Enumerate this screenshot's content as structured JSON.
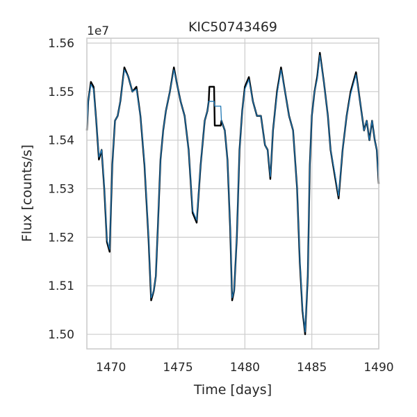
{
  "chart_data": {
    "type": "line",
    "title": "KIC50743469",
    "xlabel": "Time [days]",
    "ylabel": "Flux [counts/s]",
    "y_offset_label": "1e7",
    "xlim": [
      1468.2,
      1490.0
    ],
    "ylim": [
      14.97,
      15.61
    ],
    "xticks": [
      1470,
      1475,
      1480,
      1485,
      1490
    ],
    "yticks": [
      15.0,
      15.1,
      15.2,
      15.3,
      15.4,
      15.5,
      15.6
    ],
    "xtick_labels": [
      "1470",
      "1475",
      "1480",
      "1485",
      "1490"
    ],
    "ytick_labels": [
      "1.50",
      "1.51",
      "1.52",
      "1.53",
      "1.54",
      "1.55",
      "1.56"
    ],
    "grid": true,
    "series": [
      {
        "color": "#000000",
        "x": [
          1468.2,
          1468.3,
          1468.5,
          1468.7,
          1468.9,
          1469.1,
          1469.3,
          1469.5,
          1469.7,
          1469.9,
          1470.1,
          1470.3,
          1470.5,
          1470.7,
          1471.0,
          1471.3,
          1471.6,
          1471.9,
          1472.2,
          1472.5,
          1472.8,
          1473.0,
          1473.2,
          1473.35,
          1473.5,
          1473.7,
          1473.9,
          1474.1,
          1474.4,
          1474.7,
          1474.9,
          1475.2,
          1475.5,
          1475.8,
          1476.1,
          1476.4,
          1476.7,
          1477.0,
          1477.2,
          1477.3,
          1477.35,
          1477.7,
          1477.75,
          1478.2,
          1478.25,
          1478.5,
          1478.7,
          1478.9,
          1479.05,
          1479.2,
          1479.4,
          1479.6,
          1479.8,
          1480.0,
          1480.3,
          1480.6,
          1480.9,
          1481.2,
          1481.5,
          1481.7,
          1481.9,
          1482.1,
          1482.4,
          1482.7,
          1483.0,
          1483.3,
          1483.6,
          1483.9,
          1484.1,
          1484.3,
          1484.5,
          1484.7,
          1484.85,
          1485.0,
          1485.2,
          1485.4,
          1485.6,
          1485.9,
          1486.2,
          1486.4,
          1486.7,
          1487.0,
          1487.3,
          1487.6,
          1487.9,
          1488.1,
          1488.3,
          1488.6,
          1488.9,
          1489.1,
          1489.3,
          1489.5,
          1489.7,
          1489.85,
          1490.0
        ],
        "y": [
          15.42,
          15.48,
          15.52,
          15.51,
          15.44,
          15.36,
          15.38,
          15.3,
          15.19,
          15.17,
          15.35,
          15.44,
          15.45,
          15.48,
          15.55,
          15.53,
          15.5,
          15.51,
          15.45,
          15.35,
          15.2,
          15.07,
          15.09,
          15.12,
          15.22,
          15.36,
          15.42,
          15.46,
          15.5,
          15.55,
          15.52,
          15.48,
          15.45,
          15.38,
          15.25,
          15.23,
          15.35,
          15.44,
          15.46,
          15.48,
          15.51,
          15.51,
          15.43,
          15.43,
          15.44,
          15.42,
          15.36,
          15.22,
          15.07,
          15.09,
          15.2,
          15.38,
          15.46,
          15.51,
          15.53,
          15.48,
          15.45,
          15.45,
          15.39,
          15.38,
          15.32,
          15.42,
          15.5,
          15.55,
          15.5,
          15.45,
          15.42,
          15.3,
          15.15,
          15.05,
          15.0,
          15.12,
          15.35,
          15.45,
          15.5,
          15.53,
          15.58,
          15.52,
          15.45,
          15.38,
          15.33,
          15.28,
          15.38,
          15.45,
          15.5,
          15.52,
          15.54,
          15.48,
          15.42,
          15.44,
          15.4,
          15.44,
          15.4,
          15.38,
          15.31
        ]
      },
      {
        "color": "#1f77b4",
        "x": [
          1468.2,
          1468.3,
          1468.5,
          1468.7,
          1468.9,
          1469.1,
          1469.3,
          1469.5,
          1469.7,
          1469.9,
          1470.1,
          1470.3,
          1470.5,
          1470.7,
          1471.0,
          1471.3,
          1471.6,
          1471.9,
          1472.2,
          1472.5,
          1472.8,
          1473.0,
          1473.2,
          1473.35,
          1473.5,
          1473.7,
          1473.9,
          1474.1,
          1474.4,
          1474.7,
          1474.9,
          1475.2,
          1475.5,
          1475.8,
          1476.1,
          1476.4,
          1476.7,
          1477.0,
          1477.2,
          1477.3,
          1477.35,
          1477.7,
          1477.75,
          1478.2,
          1478.25,
          1478.5,
          1478.7,
          1478.9,
          1479.05,
          1479.2,
          1479.4,
          1479.6,
          1479.8,
          1480.0,
          1480.3,
          1480.6,
          1480.9,
          1481.2,
          1481.5,
          1481.7,
          1481.9,
          1482.1,
          1482.4,
          1482.7,
          1483.0,
          1483.3,
          1483.6,
          1483.9,
          1484.1,
          1484.3,
          1484.5,
          1484.7,
          1484.85,
          1485.0,
          1485.2,
          1485.4,
          1485.6,
          1485.9,
          1486.2,
          1486.4,
          1486.7,
          1487.0,
          1487.3,
          1487.6,
          1487.9,
          1488.1,
          1488.3,
          1488.6,
          1488.9,
          1489.1,
          1489.3,
          1489.5,
          1489.7,
          1489.85,
          1490.0
        ],
        "y": [
          15.425,
          15.48,
          15.515,
          15.505,
          15.44,
          15.365,
          15.38,
          15.305,
          15.195,
          15.175,
          15.35,
          15.44,
          15.45,
          15.48,
          15.545,
          15.53,
          15.5,
          15.505,
          15.45,
          15.355,
          15.205,
          15.075,
          15.09,
          15.12,
          15.22,
          15.36,
          15.42,
          15.46,
          15.5,
          15.545,
          15.52,
          15.48,
          15.45,
          15.38,
          15.255,
          15.235,
          15.35,
          15.44,
          15.46,
          15.48,
          15.48,
          15.48,
          15.47,
          15.47,
          15.44,
          15.42,
          15.36,
          15.225,
          15.075,
          15.09,
          15.2,
          15.38,
          15.46,
          15.505,
          15.525,
          15.48,
          15.45,
          15.45,
          15.39,
          15.38,
          15.325,
          15.42,
          15.495,
          15.545,
          15.5,
          15.45,
          15.42,
          15.3,
          15.155,
          15.055,
          15.005,
          15.12,
          15.35,
          15.45,
          15.5,
          15.525,
          15.575,
          15.52,
          15.45,
          15.38,
          15.335,
          15.285,
          15.38,
          15.45,
          15.495,
          15.515,
          15.535,
          15.48,
          15.42,
          15.44,
          15.4,
          15.44,
          15.4,
          15.38,
          15.315
        ]
      }
    ]
  }
}
